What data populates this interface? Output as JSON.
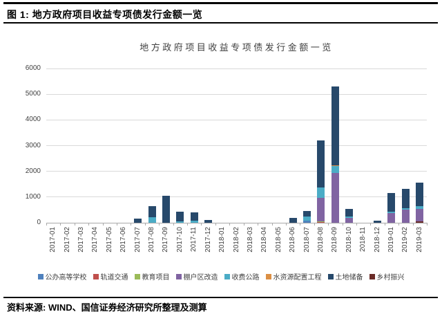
{
  "header": {
    "title": "图 1: 地方政府项目收益专项债发行金额一览"
  },
  "footer": {
    "source": "资料来源: WIND、国信证券经济研究所整理及测算"
  },
  "chart_data": {
    "type": "bar",
    "stacked": true,
    "title": "地方政府项目收益专项债发行金额一览",
    "grid": true,
    "legend_position": "bottom",
    "ylim": [
      0,
      6000
    ],
    "ytick_step": 1000,
    "categories": [
      "2017-01",
      "2017-02",
      "2017-03",
      "2017-04",
      "2017-05",
      "2017-06",
      "2017-07",
      "2017-08",
      "2017-09",
      "2017-10",
      "2017-11",
      "2017-12",
      "2018-01",
      "2018-02",
      "2018-03",
      "2018-04",
      "2018-05",
      "2018-06",
      "2018-07",
      "2018-08",
      "2018-09",
      "2018-10",
      "2018-11",
      "2018-12",
      "2019-01",
      "2019-02",
      "2019-03"
    ],
    "series": [
      {
        "name": "公办高等学校",
        "color": "#4F81BD"
      },
      {
        "name": "轨道交通",
        "color": "#C0504D"
      },
      {
        "name": "教育项目",
        "color": "#9BBB59"
      },
      {
        "name": "棚户区改造",
        "color": "#8064A2"
      },
      {
        "name": "收费公路",
        "color": "#4BACC6"
      },
      {
        "name": "水资源配置工程",
        "color": "#DB8F45"
      },
      {
        "name": "土地储备",
        "color": "#27496B"
      },
      {
        "name": "乡村振兴",
        "color": "#6B2C28"
      }
    ],
    "bars": {
      "2017-07": [
        [
          "土地储备",
          170
        ]
      ],
      "2017-08": [
        [
          "收费公路",
          210
        ],
        [
          "土地储备",
          430
        ]
      ],
      "2017-09": [
        [
          "土地储备",
          1050
        ]
      ],
      "2017-10": [
        [
          "收费公路",
          60
        ],
        [
          "土地储备",
          380
        ]
      ],
      "2017-11": [
        [
          "收费公路",
          70
        ],
        [
          "土地储备",
          340
        ]
      ],
      "2017-12": [
        [
          "土地储备",
          100
        ]
      ],
      "2018-06": [
        [
          "土地储备",
          190
        ]
      ],
      "2018-07": [
        [
          "公办高等学校",
          80
        ],
        [
          "收费公路",
          160
        ],
        [
          "土地储备",
          220
        ]
      ],
      "2018-08": [
        [
          "轨道交通",
          25
        ],
        [
          "教育项目",
          25
        ],
        [
          "棚户区改造",
          930
        ],
        [
          "收费公路",
          380
        ],
        [
          "土地储备",
          1840
        ]
      ],
      "2018-09": [
        [
          "棚户区改造",
          1950
        ],
        [
          "收费公路",
          250
        ],
        [
          "水资源配置工程",
          40
        ],
        [
          "土地储备",
          3060
        ]
      ],
      "2018-10": [
        [
          "棚户区改造",
          190
        ],
        [
          "收费公路",
          60
        ],
        [
          "土地储备",
          300
        ]
      ],
      "2018-12": [
        [
          "土地储备",
          80
        ]
      ],
      "2019-01": [
        [
          "棚户区改造",
          370
        ],
        [
          "收费公路",
          60
        ],
        [
          "土地储备",
          720
        ]
      ],
      "2019-02": [
        [
          "棚户区改造",
          500
        ],
        [
          "收费公路",
          70
        ],
        [
          "土地储备",
          750
        ]
      ],
      "2019-03": [
        [
          "乡村振兴",
          50
        ],
        [
          "棚户区改造",
          500
        ],
        [
          "收费公路",
          90
        ],
        [
          "土地储备",
          920
        ]
      ]
    }
  }
}
